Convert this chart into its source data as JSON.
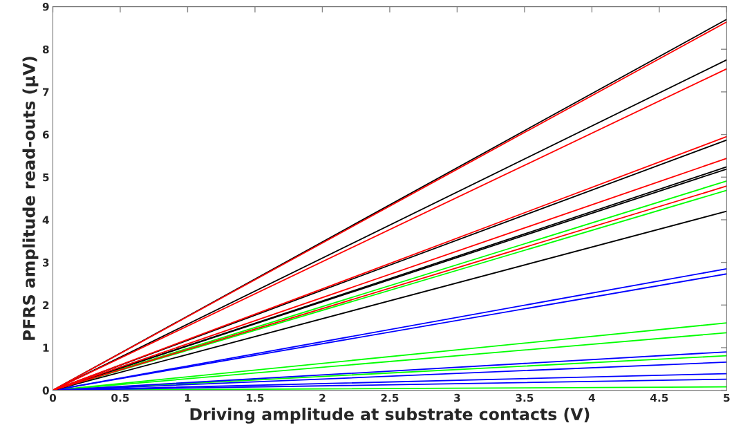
{
  "chart_data": {
    "type": "line",
    "xlabel": "Driving amplitude at substrate contacts (V)",
    "ylabel": "PFRS amplitude read-outs (µV)",
    "xlim": [
      0,
      5
    ],
    "ylim": [
      0,
      9
    ],
    "xticks": [
      0,
      0.5,
      1,
      1.5,
      2,
      2.5,
      3,
      3.5,
      4,
      4.5,
      5
    ],
    "yticks": [
      0,
      1,
      2,
      3,
      4,
      5,
      6,
      7,
      8,
      9
    ],
    "grid": false,
    "legend": false,
    "marker": "none",
    "line_style": "solid",
    "x": [
      0,
      5
    ],
    "series": [
      {
        "color": "#00ff00",
        "values": [
          0,
          4.91
        ]
      },
      {
        "color": "#00ff00",
        "values": [
          0,
          4.69
        ]
      },
      {
        "color": "#00ff00",
        "values": [
          0,
          1.58
        ]
      },
      {
        "color": "#00ff00",
        "values": [
          0,
          1.35
        ]
      },
      {
        "color": "#00ff00",
        "values": [
          0,
          0.81
        ]
      },
      {
        "color": "#00ff00",
        "values": [
          0,
          0.08
        ]
      },
      {
        "color": "#0000ff",
        "values": [
          0,
          2.85
        ]
      },
      {
        "color": "#0000ff",
        "values": [
          0,
          2.73
        ]
      },
      {
        "color": "#0000ff",
        "values": [
          0,
          0.9
        ]
      },
      {
        "color": "#0000ff",
        "values": [
          0,
          0.66
        ]
      },
      {
        "color": "#0000ff",
        "values": [
          0,
          0.39
        ]
      },
      {
        "color": "#0000ff",
        "values": [
          0,
          0.26
        ]
      },
      {
        "color": "#000000",
        "values": [
          0,
          8.7
        ]
      },
      {
        "color": "#000000",
        "values": [
          0,
          7.75
        ]
      },
      {
        "color": "#000000",
        "values": [
          0,
          5.87
        ]
      },
      {
        "color": "#000000",
        "values": [
          0,
          5.24
        ]
      },
      {
        "color": "#000000",
        "values": [
          0,
          5.19
        ]
      },
      {
        "color": "#000000",
        "values": [
          0,
          4.2
        ]
      },
      {
        "color": "#ff0000",
        "values": [
          0,
          8.64
        ]
      },
      {
        "color": "#ff0000",
        "values": [
          0,
          7.54
        ]
      },
      {
        "color": "#ff0000",
        "values": [
          0,
          5.95
        ]
      },
      {
        "color": "#ff0000",
        "values": [
          0,
          5.44
        ]
      },
      {
        "color": "#ff0000",
        "values": [
          0,
          4.79
        ]
      }
    ]
  }
}
